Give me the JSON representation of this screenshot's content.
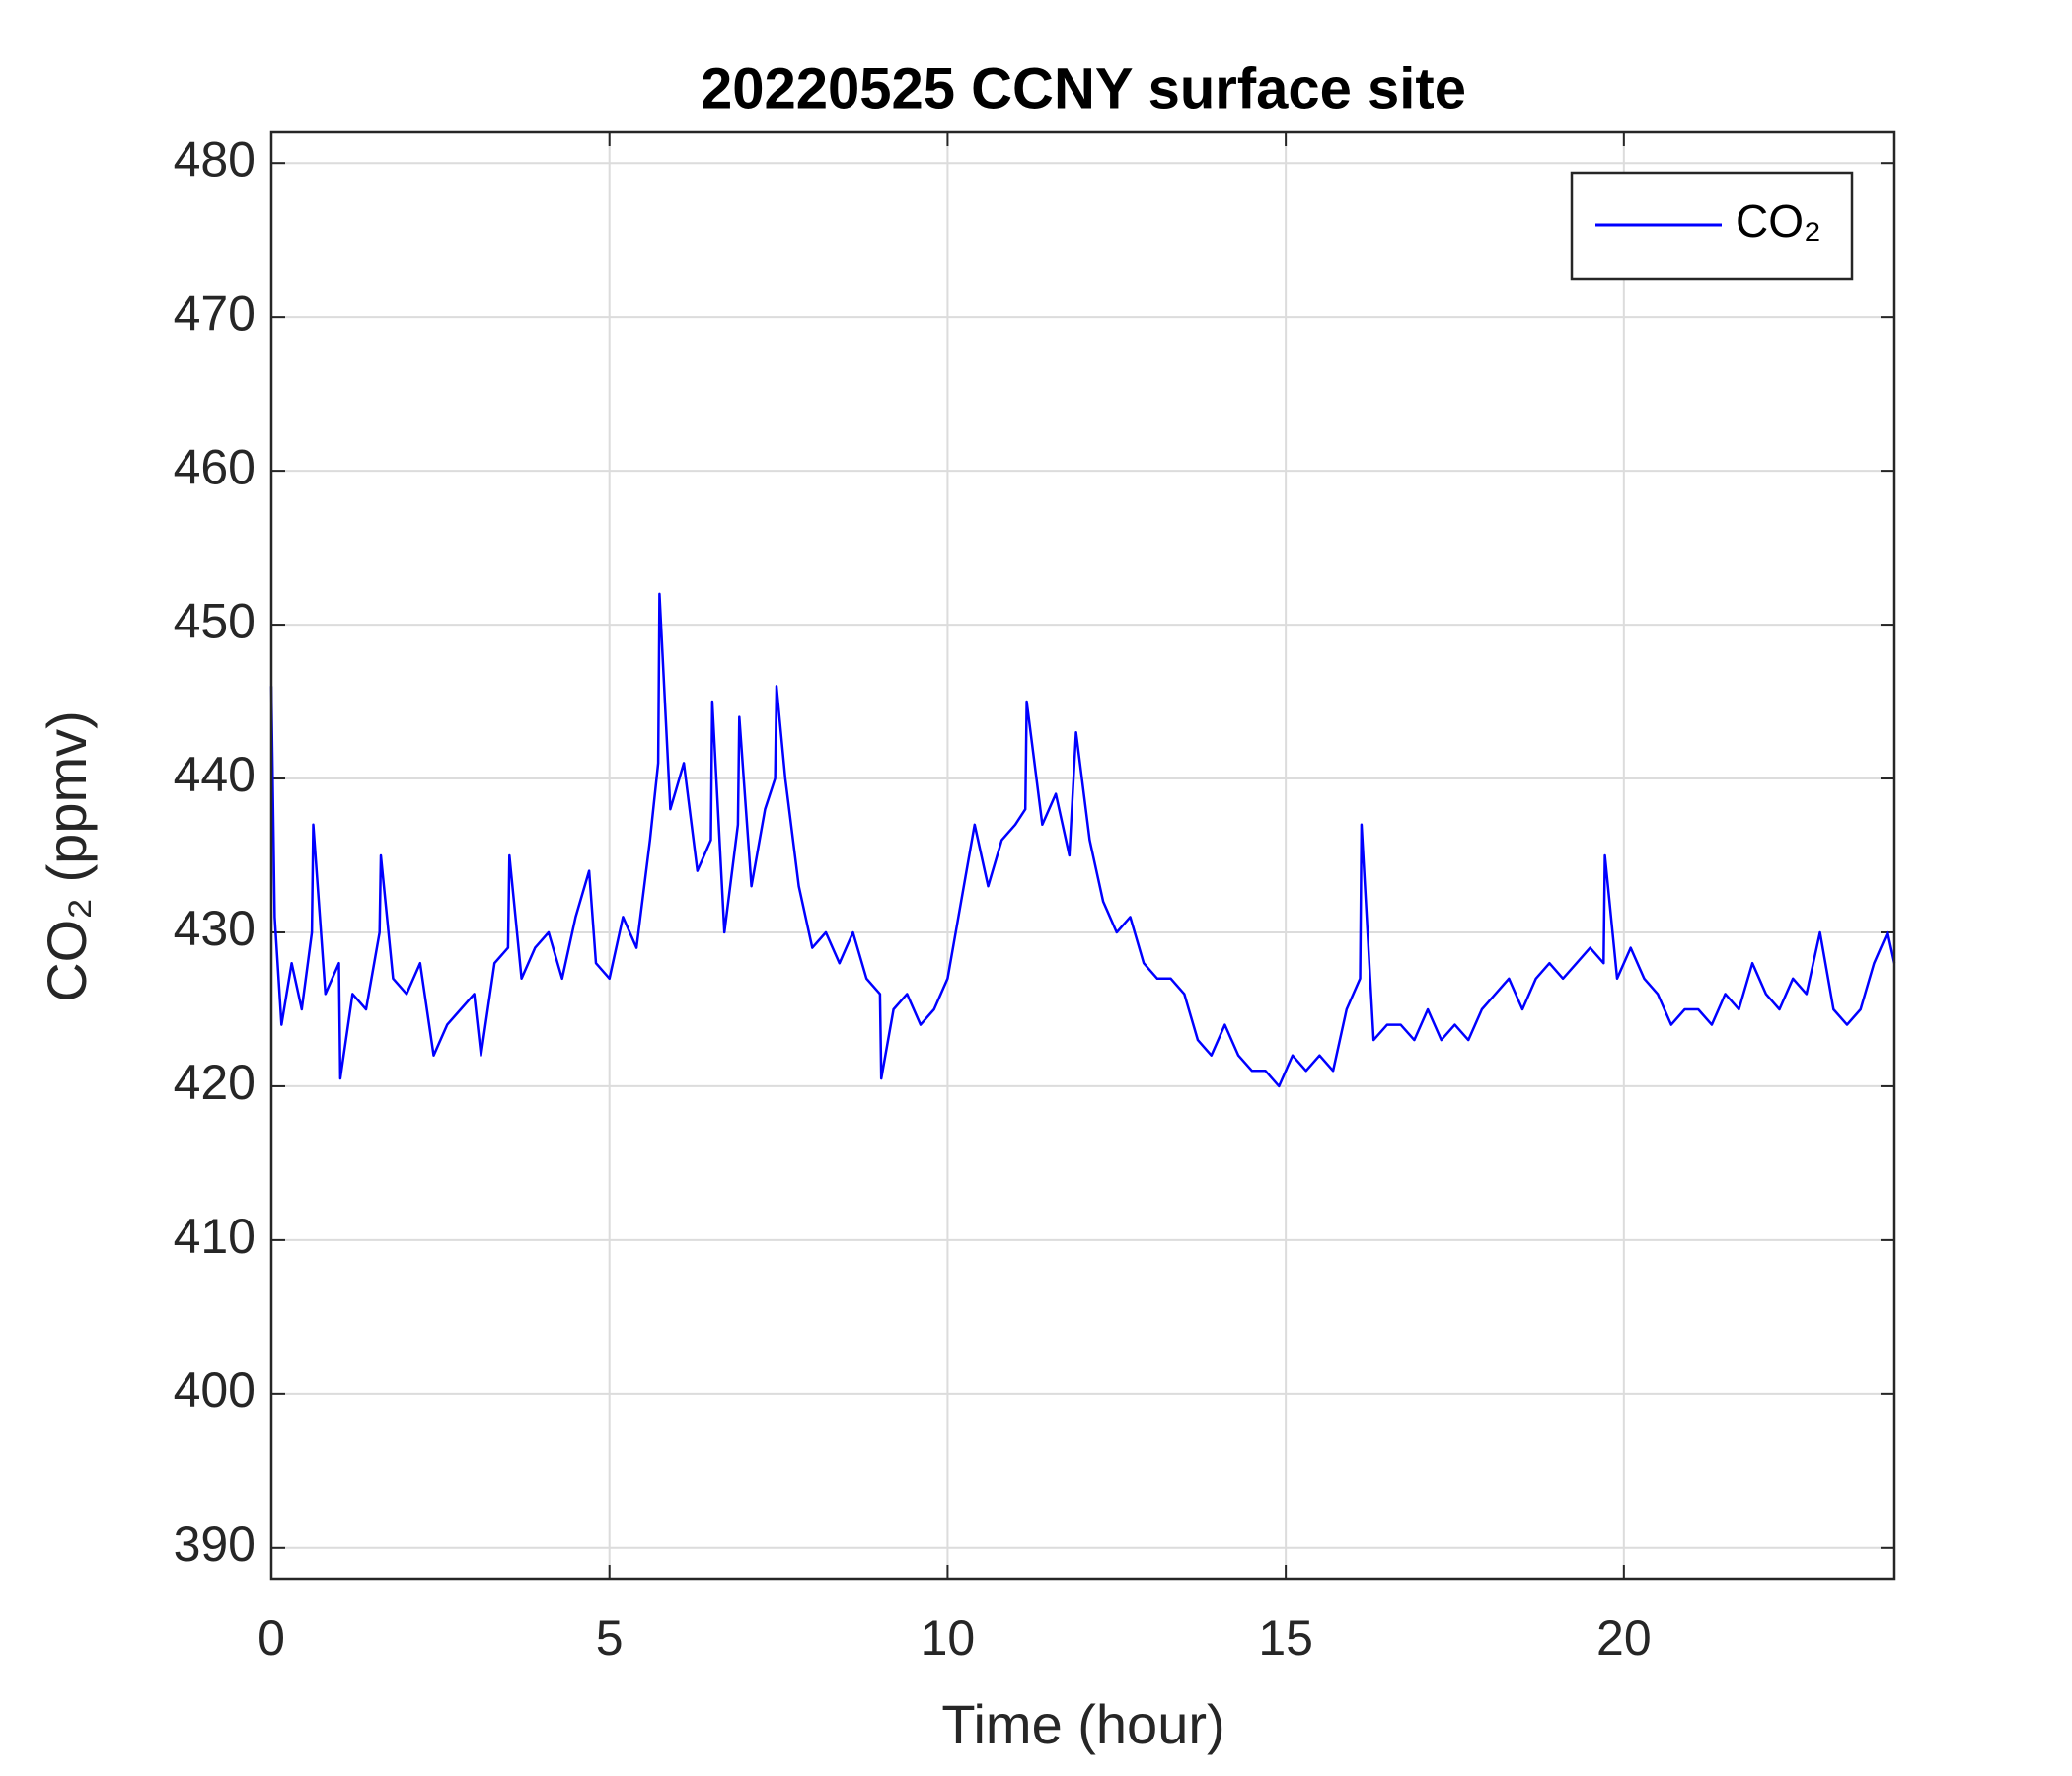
{
  "chart_data": {
    "type": "line",
    "title": "20220525 CCNY surface site",
    "x_label": "Time (hour)",
    "y_label": "CO₂ (ppmv)",
    "x": [
      0,
      0.05,
      0.15,
      0.3,
      0.45,
      0.6,
      0.62,
      0.8,
      1.0,
      1.02,
      1.2,
      1.4,
      1.6,
      1.62,
      1.8,
      2.0,
      2.2,
      2.4,
      2.6,
      2.8,
      3.0,
      3.1,
      3.3,
      3.5,
      3.52,
      3.7,
      3.9,
      4.1,
      4.3,
      4.5,
      4.7,
      4.8,
      5.0,
      5.2,
      5.4,
      5.6,
      5.72,
      5.74,
      5.9,
      6.1,
      6.3,
      6.5,
      6.52,
      6.7,
      6.9,
      6.92,
      7.1,
      7.3,
      7.45,
      7.47,
      7.6,
      7.8,
      8.0,
      8.2,
      8.4,
      8.6,
      8.8,
      9.0,
      9.02,
      9.2,
      9.4,
      9.6,
      9.8,
      10.0,
      10.2,
      10.4,
      10.6,
      10.8,
      11.0,
      11.15,
      11.17,
      11.4,
      11.6,
      11.8,
      11.9,
      12.1,
      12.3,
      12.5,
      12.7,
      12.9,
      13.1,
      13.3,
      13.5,
      13.7,
      13.9,
      14.1,
      14.3,
      14.5,
      14.7,
      14.9,
      15.1,
      15.3,
      15.5,
      15.7,
      15.9,
      16.1,
      16.12,
      16.3,
      16.5,
      16.7,
      16.9,
      17.1,
      17.3,
      17.5,
      17.7,
      17.9,
      18.1,
      18.3,
      18.5,
      18.7,
      18.9,
      19.1,
      19.3,
      19.5,
      19.7,
      19.72,
      19.9,
      20.1,
      20.3,
      20.5,
      20.7,
      20.9,
      21.1,
      21.3,
      21.5,
      21.7,
      21.9,
      22.1,
      22.3,
      22.5,
      22.7,
      22.9,
      23.1,
      23.3,
      23.5,
      23.7,
      23.9,
      24.0
    ],
    "series": [
      {
        "name": "CO₂",
        "color": "#0000ff",
        "values": [
          446,
          431,
          424,
          428,
          425,
          430,
          437,
          426,
          428,
          420.5,
          426,
          425,
          430,
          435,
          427,
          426,
          428,
          422,
          424,
          425,
          426,
          422,
          428,
          429,
          435,
          427,
          429,
          430,
          427,
          431,
          434,
          428,
          427,
          431,
          429,
          436,
          441,
          452,
          438,
          441,
          434,
          436,
          445,
          430,
          437,
          444,
          433,
          438,
          440,
          446,
          440,
          433,
          429,
          430,
          428,
          430,
          427,
          426,
          420.5,
          425,
          426,
          424,
          425,
          427,
          432,
          437,
          433,
          436,
          437,
          438,
          445,
          437,
          439,
          435,
          443,
          436,
          432,
          430,
          431,
          428,
          427,
          427,
          426,
          423,
          422,
          424,
          422,
          421,
          421,
          420,
          422,
          421,
          422,
          421,
          425,
          427,
          437,
          423,
          424,
          424,
          423,
          425,
          423,
          424,
          423,
          425,
          426,
          427,
          425,
          427,
          428,
          427,
          428,
          429,
          428,
          435,
          427,
          429,
          427,
          426,
          424,
          425,
          425,
          424,
          426,
          425,
          428,
          426,
          425,
          427,
          426,
          430,
          425,
          424,
          425,
          428,
          430,
          428
        ]
      }
    ],
    "xlim": [
      0,
      24
    ],
    "ylim": [
      388,
      482
    ],
    "xticks": [
      0,
      5,
      10,
      15,
      20
    ],
    "yticks": [
      390,
      400,
      410,
      420,
      430,
      440,
      450,
      460,
      470,
      480
    ],
    "grid": true,
    "legend": "upper right"
  }
}
